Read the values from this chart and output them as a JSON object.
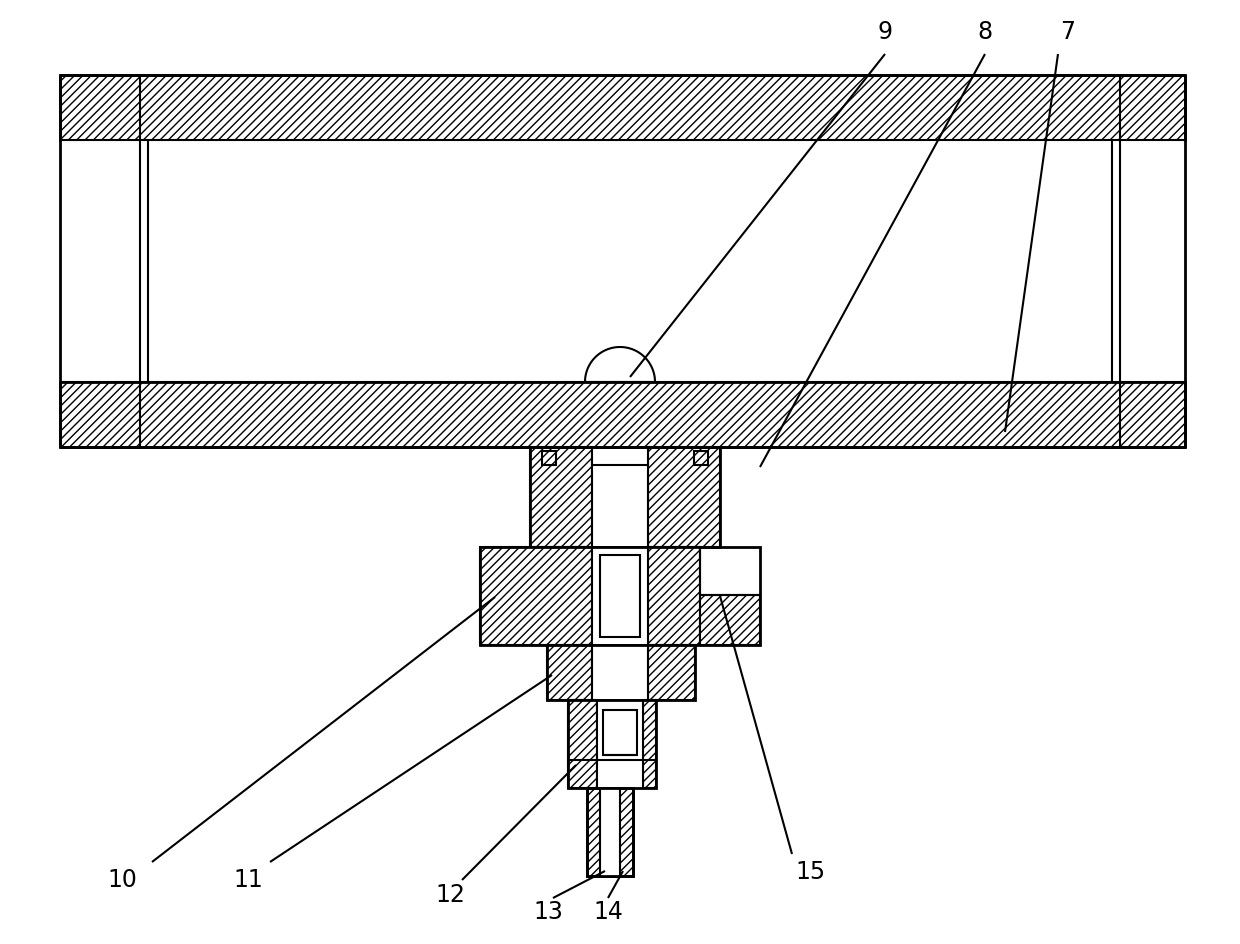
{
  "fig_width": 12.4,
  "fig_height": 9.44,
  "dpi": 100,
  "bg_color": "#ffffff",
  "lc": "#000000",
  "lw": 1.5,
  "lw2": 2.0,
  "label_fontsize": 17
}
